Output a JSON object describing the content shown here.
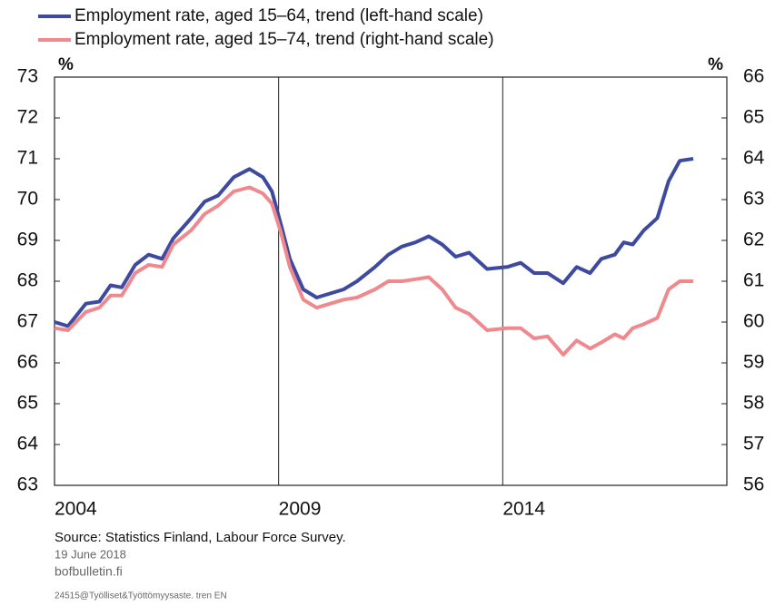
{
  "chart_data": {
    "type": "line",
    "y_unit": "%",
    "y2_unit": "%",
    "x": [
      2004.0,
      2004.3,
      2004.7,
      2005.0,
      2005.25,
      2005.5,
      2005.8,
      2006.1,
      2006.4,
      2006.65,
      2007.05,
      2007.35,
      2007.65,
      2008.0,
      2008.35,
      2008.65,
      2008.85,
      2009.05,
      2009.25,
      2009.55,
      2009.85,
      2010.15,
      2010.45,
      2010.75,
      2011.15,
      2011.45,
      2011.75,
      2012.05,
      2012.35,
      2012.65,
      2012.95,
      2013.25,
      2013.65,
      2014.1,
      2014.4,
      2014.7,
      2015.0,
      2015.35,
      2015.65,
      2015.95,
      2016.2,
      2016.5,
      2016.7,
      2016.9,
      2017.15,
      2017.45,
      2017.7,
      2017.95,
      2018.25
    ],
    "series": [
      {
        "name": "Employment rate, aged 15–64, trend (left-hand scale)",
        "color": "#3d4a9f",
        "axis": "y",
        "values": [
          67.0,
          66.9,
          67.45,
          67.5,
          67.9,
          67.85,
          68.4,
          68.65,
          68.55,
          69.05,
          69.55,
          69.95,
          70.1,
          70.55,
          70.75,
          70.55,
          70.2,
          69.4,
          68.55,
          67.8,
          67.6,
          67.7,
          67.8,
          68.0,
          68.35,
          68.65,
          68.85,
          68.95,
          69.1,
          68.9,
          68.6,
          68.7,
          68.3,
          68.35,
          68.45,
          68.2,
          68.2,
          67.95,
          68.35,
          68.2,
          68.55,
          68.65,
          68.95,
          68.9,
          69.25,
          69.55,
          70.45,
          70.95,
          71.0
        ]
      },
      {
        "name": "Employment rate, aged 15–74, trend (right-hand scale)",
        "color": "#f0898e",
        "axis": "y2",
        "values": [
          59.85,
          59.8,
          60.25,
          60.35,
          60.65,
          60.65,
          61.2,
          61.4,
          61.35,
          61.9,
          62.25,
          62.65,
          62.85,
          63.2,
          63.3,
          63.15,
          62.9,
          62.2,
          61.35,
          60.55,
          60.35,
          60.45,
          60.55,
          60.6,
          60.8,
          61.0,
          61.0,
          61.05,
          61.1,
          60.8,
          60.35,
          60.2,
          59.8,
          59.85,
          59.85,
          59.6,
          59.65,
          59.2,
          59.55,
          59.35,
          59.5,
          59.7,
          59.6,
          59.85,
          59.95,
          60.1,
          60.8,
          61.0,
          61.0
        ]
      }
    ],
    "xlim": [
      2004,
      2019
    ],
    "xticks": [
      2004,
      2009,
      2014
    ],
    "ylim": [
      63,
      73
    ],
    "yticks": [
      63,
      64,
      65,
      66,
      67,
      68,
      69,
      70,
      71,
      72,
      73
    ],
    "y2lim": [
      56,
      66
    ],
    "y2ticks": [
      56,
      57,
      58,
      59,
      60,
      61,
      62,
      63,
      64,
      65,
      66
    ],
    "xgrid": true,
    "legend": "top"
  },
  "footer": {
    "source": "Source: Statistics Finland, Labour Force Survey.",
    "date": "19 June 2018",
    "site": "bofbulletin.fi",
    "code": "24515@Työlliset&Työttömyysaste. tren EN"
  }
}
